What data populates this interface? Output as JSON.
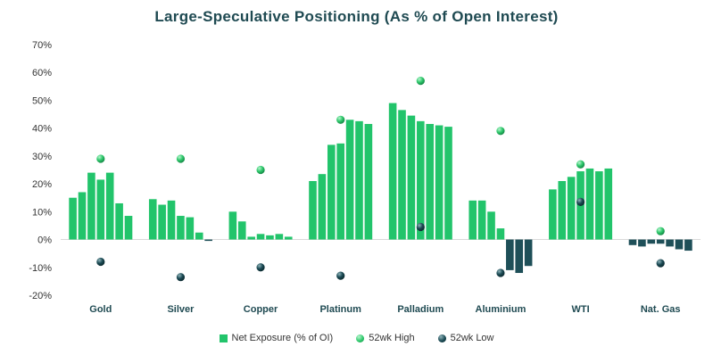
{
  "chart_data": {
    "type": "bar",
    "title": "Large-Speculative Positioning (As % of Open Interest)",
    "ylim": [
      -20,
      70
    ],
    "yticks": [
      -20,
      -10,
      0,
      10,
      20,
      30,
      40,
      50,
      60,
      70
    ],
    "ytick_labels": [
      "-20%",
      "-10%",
      "0%",
      "10%",
      "20%",
      "30%",
      "40%",
      "50%",
      "60%",
      "70%"
    ],
    "categories": [
      "Gold",
      "Silver",
      "Copper",
      "Platinum",
      "Palladium",
      "Aluminium",
      "WTI",
      "Nat. Gas"
    ],
    "series": [
      {
        "name": "Net Exposure (% of OI)",
        "values": [
          [
            15,
            17,
            24,
            21.5,
            24,
            13,
            8.5
          ],
          [
            14.5,
            12.5,
            14,
            8.5,
            8,
            2.5,
            -0.5
          ],
          [
            10,
            6.5,
            1,
            2,
            1.5,
            2,
            1
          ],
          [
            21,
            23.5,
            34,
            34.5,
            43,
            42.5,
            41.5
          ],
          [
            49,
            46.5,
            44.5,
            42.5,
            41.5,
            41,
            40.5
          ],
          [
            14,
            14,
            10,
            4,
            -11,
            -12,
            -9.5
          ],
          [
            18,
            21,
            22.5,
            24.5,
            25.5,
            24.5,
            25.5
          ],
          [
            -2,
            -2.5,
            -1.5,
            -1.5,
            -2.5,
            -3.5,
            -4
          ]
        ]
      },
      {
        "name": "52wk High",
        "values": [
          29,
          29,
          25,
          43,
          57,
          39,
          27,
          3
        ]
      },
      {
        "name": "52wk Low",
        "values": [
          -8,
          -13.5,
          -10,
          -13,
          4.5,
          -12,
          13.5,
          -8.5
        ]
      }
    ],
    "colors": {
      "positive": "#22c46b",
      "negative": "#1e4f58",
      "high_marker": "#2fc96c",
      "low_marker": "#1b4a54",
      "axis_text": "#333333",
      "category_text": "#1f4a52"
    },
    "legend_position": "bottom"
  }
}
